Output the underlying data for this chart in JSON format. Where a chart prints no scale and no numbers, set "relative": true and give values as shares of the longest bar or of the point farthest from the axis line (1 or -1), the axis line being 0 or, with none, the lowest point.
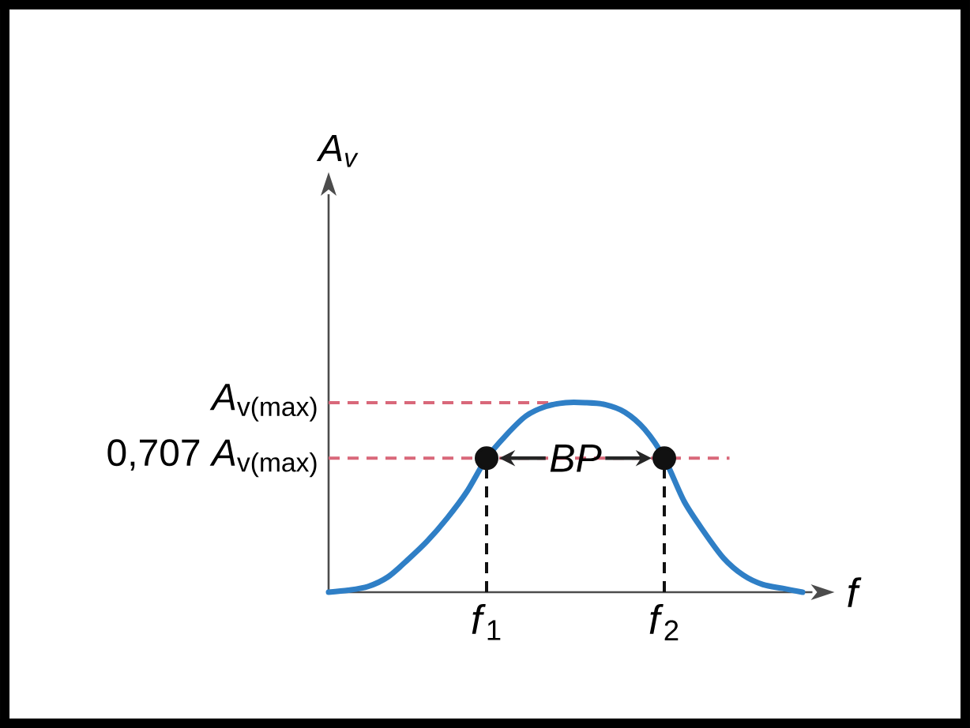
{
  "chart_data": {
    "type": "line",
    "relative": true,
    "xlabel": "f",
    "categories": [
      null,
      null,
      null,
      null,
      null,
      null,
      null,
      null,
      "*f*$_{1}$",
      null,
      null,
      null,
      null,
      null,
      null,
      null,
      null,
      "*f*$_{2}$",
      null,
      null,
      null,
      null,
      null,
      null,
      null
    ],
    "series": [
      {
        "color": "#2f7fc6",
        "marker": "none",
        "values": [
          0,
          0.01,
          0.03,
          0.08,
          0.17,
          0.27,
          0.39,
          0.53,
          0.707,
          0.83,
          0.93,
          0.98,
          1.0,
          1.0,
          0.99,
          0.95,
          0.86,
          0.707,
          0.48,
          0.32,
          0.18,
          0.09,
          0.04,
          0.02,
          0
        ]
      },
      {
        "type": "lollipop",
        "color": "#111111",
        "marker": "circle",
        "line_style": "dashed",
        "values": [
          null,
          null,
          null,
          null,
          null,
          null,
          null,
          null,
          0.707,
          null,
          null,
          null,
          null,
          null,
          null,
          null,
          null,
          0.707,
          null,
          null,
          null,
          null,
          null,
          null,
          null
        ]
      }
    ],
    "ref_lines": [
      {
        "axis": "y",
        "value": 1,
        "label": "*A*$_{v(max)}$",
        "color": "#d9687a",
        "line_style": "dashed"
      },
      {
        "axis": "y",
        "value": 0.707,
        "label": "0,707 *A*$_{v(max)}$",
        "color": "#d9687a",
        "line_style": "dashed"
      }
    ],
    "annotations": [
      "A$_{v}$",
      {
        "text": "BP",
        "y": 0.707
      }
    ]
  }
}
